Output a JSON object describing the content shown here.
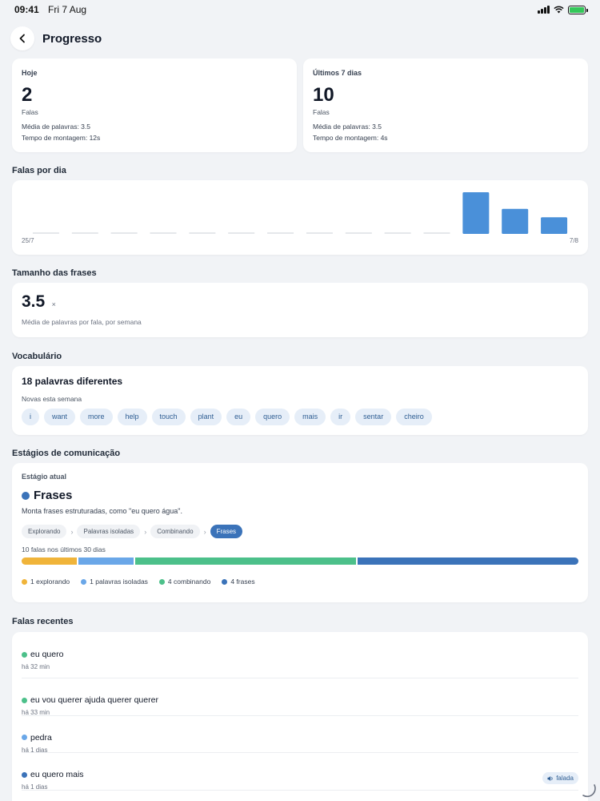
{
  "status": {
    "time": "09:41",
    "date": "Fri 7 Aug"
  },
  "header": {
    "title": "Progresso",
    "back_icon": "chevron-left-icon"
  },
  "today": {
    "label": "Hoje",
    "value": "2",
    "unit": "Falas",
    "avg_words": "Média de palavras: 3.5",
    "build_time": "Tempo de montagem: 12s"
  },
  "week": {
    "label": "Últimos 7 dias",
    "value": "10",
    "unit": "Falas",
    "avg_words": "Média de palavras: 3.5",
    "build_time": "Tempo de montagem: 4s"
  },
  "chart_section": {
    "title": "Falas por dia"
  },
  "chart_data": {
    "type": "bar",
    "start_label": "25/7",
    "end_label": "7/8",
    "values": [
      0,
      0,
      0,
      0,
      0,
      0,
      0,
      0,
      0,
      0,
      0,
      5,
      3,
      2
    ],
    "color": "#4a90d9",
    "zero_color": "#e5e7eb"
  },
  "size_section": {
    "title": "Tamanho das frases",
    "value": "3.5",
    "unit": "×",
    "desc": "Média de palavras por fala, por semana"
  },
  "vocab_section": {
    "title": "Vocabulário",
    "headline": "18 palavras diferentes",
    "sub": "Novas esta semana",
    "words": [
      "i",
      "want",
      "more",
      "help",
      "touch",
      "plant",
      "eu",
      "quero",
      "mais",
      "ir",
      "sentar",
      "cheiro"
    ]
  },
  "stage_section": {
    "title": "Estágios de comunicação",
    "current_label": "Estágio atual",
    "current_name": "Frases",
    "current_desc": "Monta frases estruturadas, como \"eu quero água\".",
    "steps": [
      "Explorando",
      "Palavras isoladas",
      "Combinando",
      "Frases"
    ],
    "active_step": 3,
    "bar_caption": "10 falas nos últimos 30 dias",
    "breakdown": [
      {
        "count": 1,
        "label": "1 explorando",
        "color": "#f0b43a"
      },
      {
        "count": 1,
        "label": "1 palavras isoladas",
        "color": "#6aa7e8"
      },
      {
        "count": 4,
        "label": "4 combinando",
        "color": "#4cc08a"
      },
      {
        "count": 4,
        "label": "4 frases",
        "color": "#3b73b9"
      }
    ]
  },
  "recent_section": {
    "title": "Falas recentes",
    "spoken_label": "falada",
    "items": [
      {
        "text": "eu quero",
        "time": "há 32 min",
        "color": "#4cc08a",
        "spoken": false
      },
      {
        "text": "eu vou querer ajuda querer querer",
        "time": "há 33 min",
        "color": "#4cc08a",
        "spoken": false
      },
      {
        "text": "pedra",
        "time": "há 1 dias",
        "color": "#6aa7e8",
        "spoken": false
      },
      {
        "text": "eu quero mais",
        "time": "há 1 dias",
        "color": "#3b73b9",
        "spoken": true
      }
    ]
  }
}
